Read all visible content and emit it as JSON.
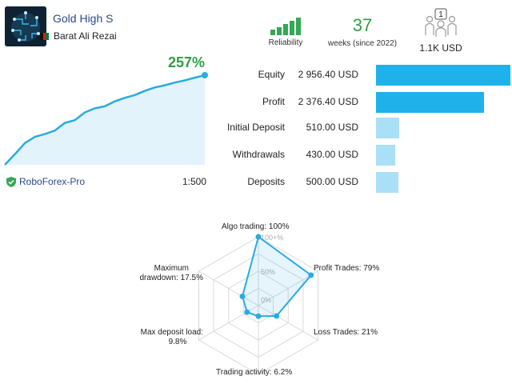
{
  "header": {
    "signal_name": "Gold High S",
    "author": "Barat Ali Rezai",
    "reliability_label": "Reliability",
    "reliability_level": 5,
    "weeks_value": "37",
    "weeks_label": "weeks (since 2022)",
    "subscribers_count": "1",
    "subscribers_amount": "1.1K USD"
  },
  "growth": {
    "percent_label": "257%",
    "broker": "RoboForex-Pro",
    "leverage": "1:500",
    "line_color": "#29abe2",
    "fill_color": "#e3f3fc"
  },
  "chart_data": {
    "type": "area",
    "title": "",
    "xlabel": "",
    "ylabel": "",
    "x": [
      0,
      1,
      2,
      3,
      4,
      5,
      6,
      7,
      8,
      9,
      10,
      11,
      12,
      13,
      14,
      15,
      16,
      17,
      18,
      19,
      20
    ],
    "values": [
      0,
      30,
      62,
      80,
      88,
      98,
      120,
      128,
      150,
      162,
      168,
      182,
      192,
      200,
      212,
      222,
      228,
      236,
      242,
      250,
      257
    ],
    "ylim": [
      0,
      257
    ],
    "grid": false,
    "legend": "none"
  },
  "stats": [
    {
      "label": "Equity",
      "value": "2 956.40 USD",
      "amount": 2956.4
    },
    {
      "label": "Profit",
      "value": "2 376.40 USD",
      "amount": 2376.4
    },
    {
      "label": "Initial Deposit",
      "value": "510.00 USD",
      "amount": 510.0
    },
    {
      "label": "Withdrawals",
      "value": "430.00 USD",
      "amount": 430.0
    },
    {
      "label": "Deposits",
      "value": "500.00 USD",
      "amount": 500.0
    }
  ],
  "stat_bar_colors": {
    "strong": "#1fb2ea",
    "light": "#a9e0f6"
  },
  "radar": {
    "labels": {
      "algo": "Algo trading: 100%",
      "profit": "Profit Trades: 79%",
      "loss": "Loss Trades: 21%",
      "activity": "Trading activity: 6.2%",
      "deposit_load_1": "Max deposit load:",
      "deposit_load_2": "9.8%",
      "drawdown_1": "Maximum",
      "drawdown_2": "drawdown: 17.5%"
    },
    "ticks": {
      "top": "100+%",
      "mid": "50%",
      "zero": "0%"
    },
    "values": [
      100,
      79,
      21,
      6.2,
      9.8,
      17.5
    ],
    "color": "#29abe2"
  }
}
